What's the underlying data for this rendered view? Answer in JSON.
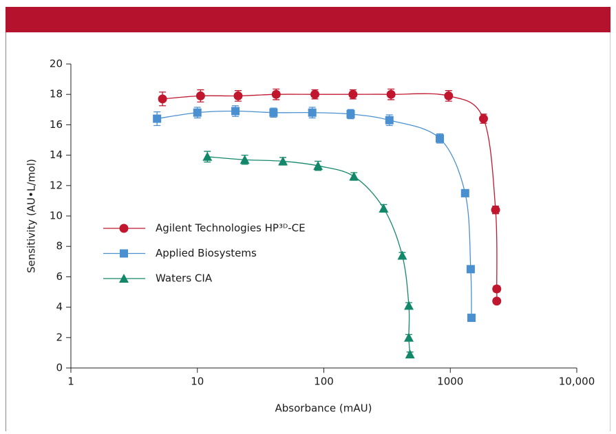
{
  "chart_data": {
    "type": "line",
    "x_label": "Absorbance (mAU)",
    "y_label": "Sensitivity (AU•L/mol)",
    "x_log": true,
    "xlim": [
      1,
      10000
    ],
    "xticks": [
      1,
      10,
      100,
      1000,
      {
        "value": 10000,
        "label": "10,000"
      }
    ],
    "ylim": [
      0,
      20
    ],
    "yticks": [
      0,
      2,
      4,
      6,
      8,
      10,
      12,
      14,
      16,
      18,
      20
    ],
    "legend": "left",
    "series": [
      {
        "name": "Agilent Technologies HP³ᴰ-CE",
        "color": "#c0172f",
        "marker": "circle",
        "x": [
          5.3,
          10.6,
          21,
          42,
          85,
          170,
          340,
          970,
          1830,
          2280,
          2330,
          2330
        ],
        "values": [
          17.7,
          17.9,
          17.9,
          18.0,
          18.0,
          18.0,
          18.0,
          17.9,
          16.4,
          10.4,
          5.2,
          4.4
        ],
        "errors": [
          0.45,
          0.4,
          0.35,
          0.35,
          0.3,
          0.3,
          0.35,
          0.35,
          0.3,
          0.25,
          0.2,
          0.15
        ]
      },
      {
        "name": "Applied Biosystems",
        "color": "#4a90d0",
        "marker": "square",
        "x": [
          4.8,
          10,
          20,
          40,
          81,
          163,
          330,
          826,
          1310,
          1450,
          1470
        ],
        "values": [
          16.4,
          16.8,
          16.9,
          16.8,
          16.8,
          16.7,
          16.3,
          15.1,
          11.5,
          6.5,
          3.3
        ],
        "errors": [
          0.45,
          0.35,
          0.35,
          0.3,
          0.35,
          0.3,
          0.35,
          0.3,
          0.2,
          0.15,
          0.1
        ]
      },
      {
        "name": "Waters CIA",
        "color": "#13876a",
        "marker": "triangle",
        "x": [
          12,
          23.7,
          47.5,
          90,
          173,
          297,
          417,
          470,
          470,
          480
        ],
        "values": [
          13.9,
          13.7,
          13.6,
          13.3,
          12.6,
          10.5,
          7.4,
          4.1,
          2.0,
          0.9
        ],
        "errors": [
          0.35,
          0.3,
          0.25,
          0.3,
          0.25,
          0.25,
          0.2,
          0.2,
          0.2,
          0.15
        ]
      }
    ]
  }
}
